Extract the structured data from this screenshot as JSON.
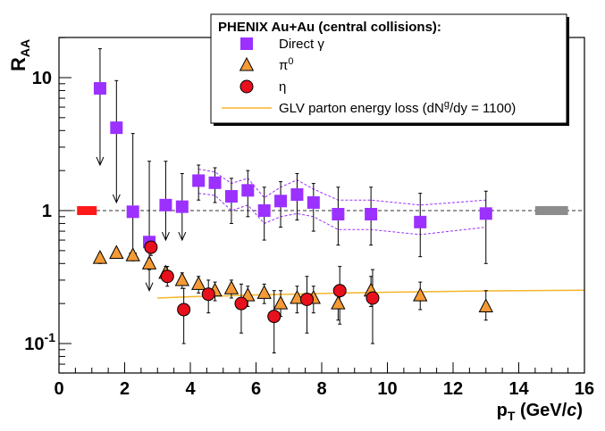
{
  "chart_data": {
    "type": "scatter",
    "title": "",
    "xlabel": "p_T (GeV/c)",
    "ylabel": "R_AA",
    "xlim": [
      0,
      16
    ],
    "ylim": [
      0.06,
      20
    ],
    "yscale": "log",
    "x_ticks": [
      0,
      2,
      4,
      6,
      8,
      10,
      12,
      14,
      16
    ],
    "y_ticks": [
      {
        "value": 0.1,
        "base": "10",
        "exp": "-1"
      },
      {
        "value": 1,
        "base": "1",
        "exp": ""
      },
      {
        "value": 10,
        "base": "10",
        "exp": ""
      }
    ],
    "reference_line": 1,
    "legend": {
      "title": "PHENIX Au+Au (central collisions):",
      "position": "top-right",
      "entries": [
        {
          "series": "direct_gamma",
          "label": "Direct γ"
        },
        {
          "series": "pi0",
          "label": "π",
          "sup": "0"
        },
        {
          "series": "eta",
          "label": "η"
        },
        {
          "series": "glv",
          "label": "GLV parton energy loss (dN",
          "sup": "g",
          "suffix": "/dy = 1100)"
        }
      ]
    },
    "series": [
      {
        "name": "Direct γ",
        "id": "direct_gamma",
        "marker": "square",
        "color": "#9b30ff",
        "points": [
          {
            "x": 1.25,
            "y": 8.3,
            "err_hi": 16.5,
            "err_lo": 2.2,
            "arrow": true
          },
          {
            "x": 1.75,
            "y": 4.2,
            "err_hi": 9.5,
            "err_lo": 1.15,
            "arrow": true
          },
          {
            "x": 2.25,
            "y": 0.98,
            "err_hi": 3.8,
            "err_lo": 0.42,
            "arrow": true
          },
          {
            "x": 2.75,
            "y": 0.58,
            "err_hi": 2.35,
            "err_lo": 0.25,
            "arrow": true
          },
          {
            "x": 3.25,
            "y": 1.1,
            "err_hi": 2.35,
            "err_lo": 0.6,
            "arrow": true
          },
          {
            "x": 3.75,
            "y": 1.07,
            "err_hi": 1.9,
            "err_lo": 0.6,
            "arrow": true
          },
          {
            "x": 4.25,
            "y": 1.68,
            "err_hi": 2.2,
            "err_lo": 1.2
          },
          {
            "x": 4.75,
            "y": 1.62,
            "err_hi": 2.1,
            "err_lo": 1.15
          },
          {
            "x": 5.25,
            "y": 1.28,
            "err_hi": 1.75,
            "err_lo": 0.8
          },
          {
            "x": 5.75,
            "y": 1.42,
            "err_hi": 2.0,
            "err_lo": 0.9
          },
          {
            "x": 6.25,
            "y": 1.0,
            "err_hi": 1.5,
            "err_lo": 0.6
          },
          {
            "x": 6.75,
            "y": 1.18,
            "err_hi": 1.65,
            "err_lo": 0.75
          },
          {
            "x": 7.25,
            "y": 1.32,
            "err_hi": 1.9,
            "err_lo": 0.85
          },
          {
            "x": 7.75,
            "y": 1.15,
            "err_hi": 1.6,
            "err_lo": 0.7
          },
          {
            "x": 8.5,
            "y": 0.94,
            "err_hi": 1.5,
            "err_lo": 0.55
          },
          {
            "x": 9.5,
            "y": 0.94,
            "err_hi": 1.5,
            "err_lo": 0.55
          },
          {
            "x": 11.0,
            "y": 0.82,
            "err_hi": 1.35,
            "err_lo": 0.45
          },
          {
            "x": 13.0,
            "y": 0.95,
            "err_hi": 1.4,
            "err_lo": 0.4
          }
        ],
        "sys_band": {
          "x": [
            4.25,
            4.75,
            5.25,
            5.75,
            6.25,
            6.75,
            7.25,
            7.75,
            8.5,
            9.5,
            11.0,
            13.0
          ],
          "hi": [
            2.05,
            1.95,
            1.6,
            1.75,
            1.25,
            1.5,
            1.7,
            1.45,
            1.2,
            1.2,
            1.1,
            1.2
          ],
          "lo": [
            1.35,
            1.3,
            1.0,
            1.1,
            0.8,
            0.9,
            0.95,
            0.9,
            0.72,
            0.72,
            0.66,
            0.75
          ]
        }
      },
      {
        "name": "π⁰",
        "id": "pi0",
        "marker": "triangle",
        "color": "#f59a36",
        "points": [
          {
            "x": 1.25,
            "y": 0.44,
            "err_hi": 0.48,
            "err_lo": 0.4
          },
          {
            "x": 1.75,
            "y": 0.48,
            "err_hi": 0.52,
            "err_lo": 0.44
          },
          {
            "x": 2.25,
            "y": 0.46,
            "err_hi": 0.5,
            "err_lo": 0.42
          },
          {
            "x": 2.75,
            "y": 0.4,
            "err_hi": 0.44,
            "err_lo": 0.36
          },
          {
            "x": 3.25,
            "y": 0.34,
            "err_hi": 0.38,
            "err_lo": 0.3
          },
          {
            "x": 3.75,
            "y": 0.3,
            "err_hi": 0.34,
            "err_lo": 0.26
          },
          {
            "x": 4.25,
            "y": 0.28,
            "err_hi": 0.32,
            "err_lo": 0.24
          },
          {
            "x": 4.75,
            "y": 0.25,
            "err_hi": 0.29,
            "err_lo": 0.21
          },
          {
            "x": 5.25,
            "y": 0.26,
            "err_hi": 0.3,
            "err_lo": 0.22
          },
          {
            "x": 5.75,
            "y": 0.23,
            "err_hi": 0.27,
            "err_lo": 0.19
          },
          {
            "x": 6.25,
            "y": 0.24,
            "err_hi": 0.28,
            "err_lo": 0.2
          },
          {
            "x": 6.75,
            "y": 0.2,
            "err_hi": 0.25,
            "err_lo": 0.16
          },
          {
            "x": 7.25,
            "y": 0.22,
            "err_hi": 0.27,
            "err_lo": 0.17
          },
          {
            "x": 7.75,
            "y": 0.22,
            "err_hi": 0.27,
            "err_lo": 0.17
          },
          {
            "x": 8.5,
            "y": 0.2,
            "err_hi": 0.26,
            "err_lo": 0.15
          },
          {
            "x": 9.5,
            "y": 0.25,
            "err_hi": 0.32,
            "err_lo": 0.19
          },
          {
            "x": 11.0,
            "y": 0.23,
            "err_hi": 0.29,
            "err_lo": 0.18
          },
          {
            "x": 13.0,
            "y": 0.19,
            "err_hi": 0.25,
            "err_lo": 0.15
          }
        ]
      },
      {
        "name": "η",
        "id": "eta",
        "marker": "circle",
        "color": "#e8101c",
        "points": [
          {
            "x": 2.8,
            "y": 0.53,
            "err_hi": 0.6,
            "err_lo": 0.46
          },
          {
            "x": 3.3,
            "y": 0.32,
            "err_hi": 0.38,
            "err_lo": 0.27
          },
          {
            "x": 3.8,
            "y": 0.18,
            "err_hi": 0.26,
            "err_lo": 0.1
          },
          {
            "x": 4.55,
            "y": 0.235,
            "err_hi": 0.3,
            "err_lo": 0.17
          },
          {
            "x": 5.55,
            "y": 0.2,
            "err_hi": 0.28,
            "err_lo": 0.12
          },
          {
            "x": 6.55,
            "y": 0.16,
            "err_hi": 0.25,
            "err_lo": 0.085
          },
          {
            "x": 7.55,
            "y": 0.215,
            "err_hi": 0.32,
            "err_lo": 0.12
          },
          {
            "x": 8.55,
            "y": 0.25,
            "err_hi": 0.38,
            "err_lo": 0.14
          },
          {
            "x": 9.55,
            "y": 0.22,
            "err_hi": 0.36,
            "err_lo": 0.1
          }
        ]
      },
      {
        "name": "GLV parton energy loss",
        "id": "glv",
        "marker": "line",
        "color": "#f5b52a",
        "x": [
          3.0,
          4.0,
          5.0,
          6.0,
          7.0,
          8.0,
          9.0,
          10.0,
          11.0,
          12.0,
          13.0,
          14.0,
          15.0,
          16.0
        ],
        "y": [
          0.22,
          0.225,
          0.228,
          0.232,
          0.235,
          0.238,
          0.241,
          0.243,
          0.245,
          0.247,
          0.249,
          0.25,
          0.251,
          0.252
        ]
      }
    ],
    "normalization_boxes": [
      {
        "name": "normalization-box-red",
        "x_range": [
          0.55,
          1.15
        ],
        "y": 1,
        "color": "#ff1a1a"
      },
      {
        "name": "normalization-box-gray",
        "x_range": [
          14.5,
          15.5
        ],
        "y": 1,
        "color": "#8c8c8c"
      }
    ]
  }
}
